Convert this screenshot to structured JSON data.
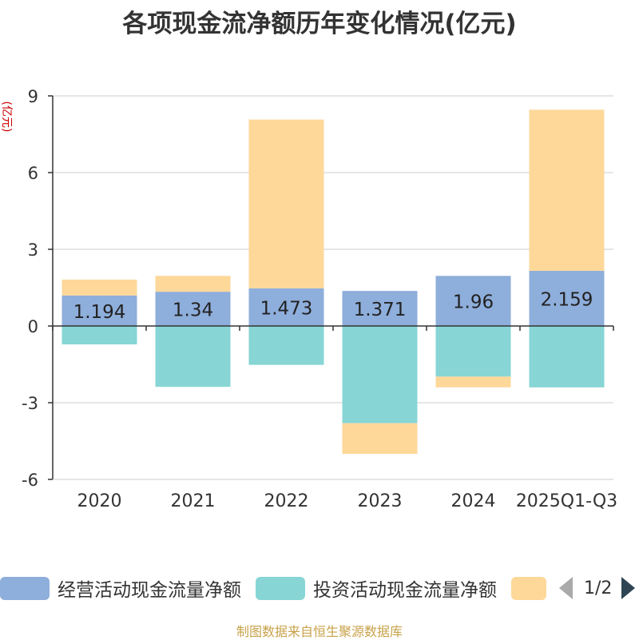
{
  "title": "各项现金流净额历年变化情况(亿元)",
  "chart_data": {
    "type": "bar",
    "stacked": true,
    "title": "各项现金流净额历年变化情况(亿元)",
    "ylabel": "(亿元)",
    "xlabel": "",
    "ylim": [
      -6,
      9
    ],
    "yticks": [
      -6,
      -3,
      0,
      3,
      6,
      9
    ],
    "categories": [
      "2020",
      "2021",
      "2022",
      "2023",
      "2024",
      "2025Q1-Q3"
    ],
    "series": [
      {
        "name": "经营活动现金流量净额",
        "color": "#8eaedb",
        "values": [
          1.194,
          1.34,
          1.473,
          1.371,
          1.96,
          2.159
        ],
        "labels": [
          "1.194",
          "1.34",
          "1.473",
          "1.371",
          "1.96",
          "2.159"
        ]
      },
      {
        "name": "投资活动现金流量净额",
        "color": "#87d5d5",
        "values": [
          -0.72,
          -2.38,
          -1.52,
          -3.8,
          -1.98,
          -2.4
        ]
      },
      {
        "name": "",
        "color": "#fdd899",
        "values": [
          0.62,
          0.62,
          6.6,
          -1.2,
          -0.42,
          6.3
        ]
      }
    ],
    "legend_position": "bottom"
  },
  "legend": {
    "items": [
      {
        "label": "经营活动现金流量净额",
        "color": "#8eaedb"
      },
      {
        "label": "投资活动现金流量净额",
        "color": "#87d5d5"
      },
      {
        "label": "",
        "color": "#fdd899"
      }
    ],
    "page": "1/2"
  },
  "footer": "制图数据来自恒生聚源数据库"
}
